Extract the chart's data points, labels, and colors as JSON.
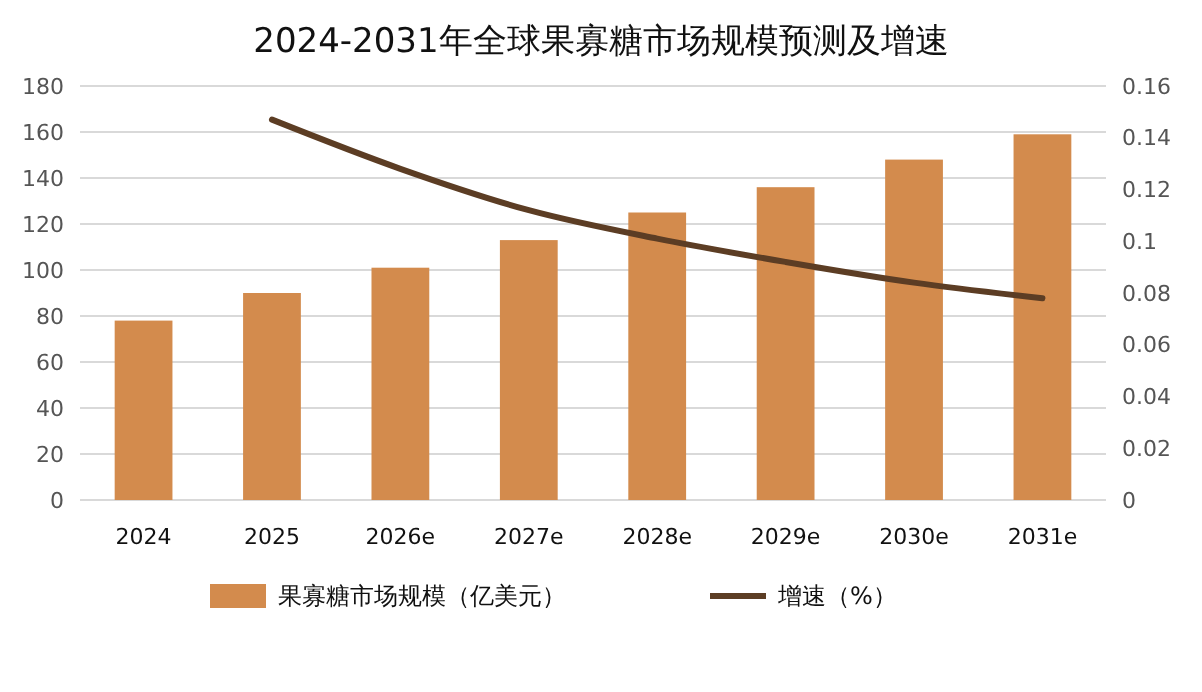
{
  "chart_data": {
    "type": "bar",
    "title": "2024-2031年全球果寡糖市场规模预测及增速",
    "categories": [
      "2024",
      "2025",
      "2026e",
      "2027e",
      "2028e",
      "2029e",
      "2030e",
      "2031e"
    ],
    "series": [
      {
        "name": "果寡糖市场规模（亿美元）",
        "color": "#d38b4d",
        "values": [
          78,
          90,
          101,
          113,
          125,
          136,
          148,
          159
        ]
      },
      {
        "name": "增速（%）",
        "type": "line",
        "axis": "y2",
        "color": "#5c3d24",
        "values": [
          null,
          0.147,
          0.128,
          0.112,
          0.101,
          0.092,
          0.084,
          0.078
        ]
      }
    ],
    "ylim": [
      0,
      180
    ],
    "yticks": [
      0,
      20,
      40,
      60,
      80,
      100,
      120,
      140,
      160,
      180
    ],
    "y2lim": [
      0,
      0.16
    ],
    "y2ticks": [
      0,
      0.02,
      0.04,
      0.06,
      0.08,
      0.1,
      0.12,
      0.14,
      0.16
    ],
    "grid": "y",
    "legend": "bottom",
    "marker": "none",
    "line_style": "solid"
  }
}
